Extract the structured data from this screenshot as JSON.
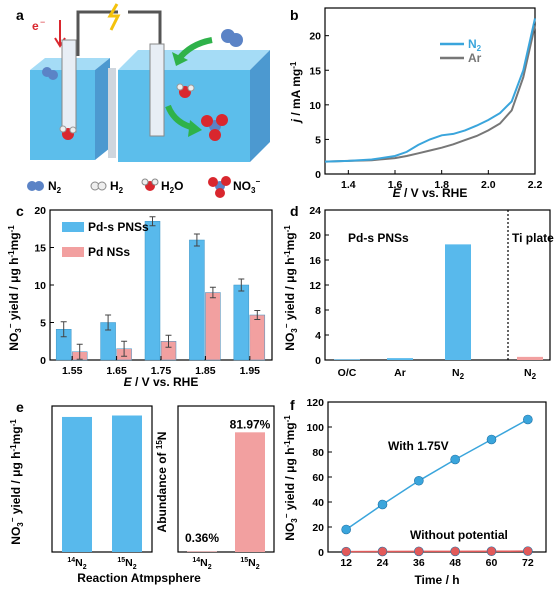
{
  "panel_a": {
    "label": "a",
    "electron_label": "e",
    "legend": [
      {
        "formula": "N2",
        "base": "N",
        "sub": "2",
        "sup": ""
      },
      {
        "formula": "H2",
        "base": "H",
        "sub": "2",
        "sup": ""
      },
      {
        "formula": "H2O",
        "base": "H",
        "sub": "2",
        "after": "O",
        "sup": ""
      },
      {
        "formula": "NO3-",
        "base": "NO",
        "sub": "3",
        "sup": "−"
      }
    ],
    "colors": {
      "water": "#3fb3e8",
      "water_dark": "#1f7fc4",
      "nitrogen": "#5b83c6",
      "oxygen": "#d9272e",
      "hydrogen": "#e9e9e9",
      "arrow": "#2fb24a",
      "spark": "#f4c20d"
    }
  },
  "chart_data": [
    {
      "id": "b",
      "type": "line",
      "panel_label": "b",
      "xlabel_italic": "E",
      "xlabel_rest": " / V vs. RHE",
      "ylabel_italic": "j",
      "ylabel_rest": " / mA mg",
      "ylabel_sup": "-1",
      "xlim": [
        1.3,
        2.2
      ],
      "ylim": [
        0,
        24
      ],
      "xticks": [
        "1.4",
        "1.6",
        "1.8",
        "2.0",
        "2.2"
      ],
      "yticks": [
        "0",
        "5",
        "10",
        "15",
        "20"
      ],
      "legend_position": "top-right",
      "series": [
        {
          "name": "N",
          "name_sub": "2",
          "color": "#3aa5dc",
          "x": [
            1.3,
            1.4,
            1.5,
            1.6,
            1.65,
            1.7,
            1.75,
            1.8,
            1.85,
            1.9,
            1.95,
            2.0,
            2.05,
            2.1,
            2.15,
            2.2
          ],
          "y": [
            1.8,
            1.9,
            2.1,
            2.6,
            3.2,
            4.2,
            5.0,
            5.6,
            5.8,
            6.3,
            7.0,
            7.8,
            8.8,
            10.5,
            15.0,
            22.5
          ]
        },
        {
          "name": "Ar",
          "color": "#777777",
          "x": [
            1.3,
            1.4,
            1.5,
            1.6,
            1.65,
            1.7,
            1.75,
            1.8,
            1.85,
            1.9,
            1.95,
            2.0,
            2.05,
            2.1,
            2.15,
            2.2
          ],
          "y": [
            1.8,
            1.9,
            2.0,
            2.3,
            2.6,
            3.0,
            3.4,
            3.8,
            4.3,
            4.9,
            5.5,
            6.3,
            7.3,
            9.2,
            14.0,
            21.5
          ]
        }
      ]
    },
    {
      "id": "c",
      "type": "bar",
      "panel_label": "c",
      "categories": [
        "1.55",
        "1.65",
        "1.75",
        "1.85",
        "1.95"
      ],
      "xlabel_italic": "E",
      "xlabel_rest": " / V vs. RHE",
      "ylabel": "NO",
      "ylabel_sub": "3",
      "ylabel_sup": "−",
      "ylabel_rest": " yield / μg h",
      "ylabel_sup2": "-1",
      "ylabel_end": "mg",
      "ylabel_sup3": "-1",
      "ylim": [
        0,
        20
      ],
      "yticks": [
        "0",
        "5",
        "10",
        "15",
        "20"
      ],
      "legend_position": "top-left",
      "series": [
        {
          "name": "Pd-s PNSs",
          "color": "#58b9ec",
          "values": [
            4.1,
            5.0,
            18.5,
            16.0,
            10.0
          ],
          "errors": [
            1.0,
            1.0,
            0.6,
            0.8,
            0.8
          ]
        },
        {
          "name": "Pd NSs",
          "color": "#f2a0a0",
          "values": [
            1.1,
            1.5,
            2.5,
            9.0,
            6.0
          ],
          "errors": [
            1.0,
            1.0,
            0.8,
            0.7,
            0.6
          ]
        }
      ]
    },
    {
      "id": "d",
      "type": "bar",
      "panel_label": "d",
      "categories": [
        "O/C",
        "Ar",
        "N",
        "N"
      ],
      "category_subs": [
        "",
        "",
        "2",
        "2"
      ],
      "ylabel": "NO",
      "ylabel_sub": "3",
      "ylabel_sup": "−",
      "ylabel_rest": " yield / μg h",
      "ylabel_sup2": "-1",
      "ylabel_end": "mg",
      "ylabel_sup3": "-1",
      "ylim": [
        0,
        24
      ],
      "yticks": [
        "0",
        "4",
        "8",
        "12",
        "16",
        "20",
        "24"
      ],
      "group_labels": [
        "Pd-s PNSs",
        "Ti plate"
      ],
      "values": [
        0.1,
        0.3,
        18.5,
        0.5
      ],
      "colors": [
        "#58b9ec",
        "#58b9ec",
        "#58b9ec",
        "#f2a0a0"
      ]
    },
    {
      "id": "e1",
      "type": "bar",
      "panel_label": "e",
      "categories": [
        "N",
        "N"
      ],
      "category_sups": [
        "14",
        "15"
      ],
      "category_subs": [
        "2",
        "2"
      ],
      "ylabel": "NO",
      "ylabel_sub": "3",
      "ylabel_sup": "−",
      "ylabel_rest": " yield / μg h",
      "ylabel_sup2": "-1",
      "ylabel_end": "mg",
      "ylabel_sup3": "-1",
      "xlabel": "Reaction Atmpsphere",
      "ylim": [
        0,
        20
      ],
      "values": [
        18.5,
        18.7
      ],
      "color": "#58b9ec"
    },
    {
      "id": "e2",
      "type": "bar",
      "categories": [
        "N",
        "N"
      ],
      "category_sups": [
        "14",
        "15"
      ],
      "category_subs": [
        "2",
        "2"
      ],
      "ylabel": "Abundance of ",
      "ylabel_sup": "15",
      "ylabel_end": "N",
      "ylim": [
        0,
        100
      ],
      "values": [
        0.36,
        81.97
      ],
      "value_labels": [
        "0.36%",
        "81.97%"
      ],
      "color": "#f2a0a0"
    },
    {
      "id": "f",
      "type": "line",
      "panel_label": "f",
      "xlabel": "Time / h",
      "ylabel": "NO",
      "ylabel_sub": "3",
      "ylabel_sup": "−",
      "ylabel_rest": " yield / μg h",
      "ylabel_sup2": "-1",
      "ylabel_end": "mg",
      "ylabel_sup3": "-1",
      "xlim": [
        6,
        78
      ],
      "ylim": [
        0,
        120
      ],
      "xticks": [
        "12",
        "24",
        "36",
        "48",
        "60",
        "72"
      ],
      "yticks": [
        "0",
        "20",
        "40",
        "60",
        "80",
        "100",
        "120"
      ],
      "series": [
        {
          "name": "With 1.75V",
          "color": "#3aa5dc",
          "x": [
            12,
            24,
            36,
            48,
            60,
            72
          ],
          "y": [
            18,
            38,
            57,
            74,
            90,
            106
          ]
        },
        {
          "name": "Without potential",
          "color": "#e25a5a",
          "x": [
            12,
            24,
            36,
            48,
            60,
            72
          ],
          "y": [
            0.3,
            0.4,
            0.5,
            0.5,
            0.6,
            0.7
          ]
        }
      ]
    }
  ]
}
